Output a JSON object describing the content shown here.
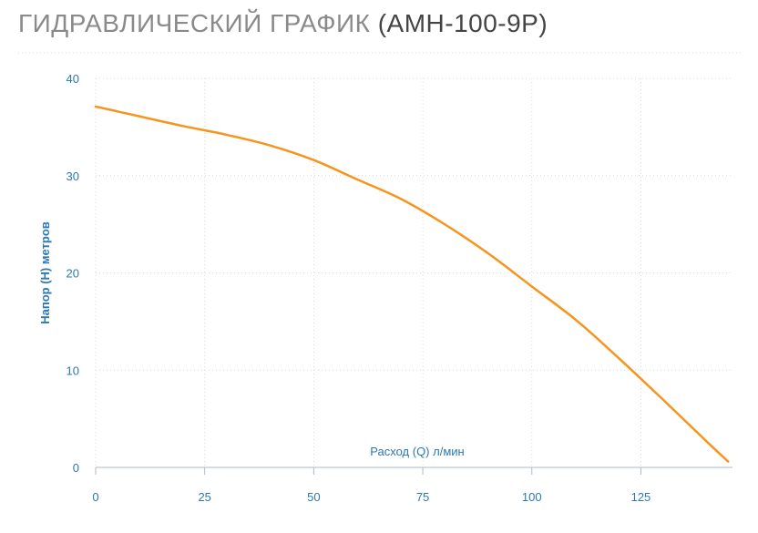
{
  "title": {
    "main": "ГИДРАВЛИЧЕСКИЙ ГРАФИК",
    "model": "(АМН-100-9Р)"
  },
  "colors": {
    "curve": "#f7941d",
    "axis_text": "#2a78b4",
    "grid": "#d9d9d9"
  },
  "chart_data": {
    "type": "line",
    "xlabel": "Расход (Q) л/мин",
    "ylabel": "Напор (H) метров",
    "xlim": [
      0,
      146
    ],
    "ylim": [
      0,
      40
    ],
    "xticks": [
      0,
      25,
      50,
      75,
      100,
      125
    ],
    "yticks": [
      0,
      10,
      20,
      30,
      40
    ],
    "grid": true,
    "series": [
      {
        "x": [
          0,
          10,
          20,
          30,
          40,
          50,
          60,
          70,
          80,
          90,
          100,
          110,
          120,
          130,
          140,
          145
        ],
        "y": [
          37.1,
          36.1,
          35.1,
          34.2,
          33.1,
          31.6,
          29.6,
          27.6,
          25.0,
          22.0,
          18.6,
          15.2,
          11.2,
          7.0,
          2.7,
          0.6
        ]
      }
    ]
  }
}
